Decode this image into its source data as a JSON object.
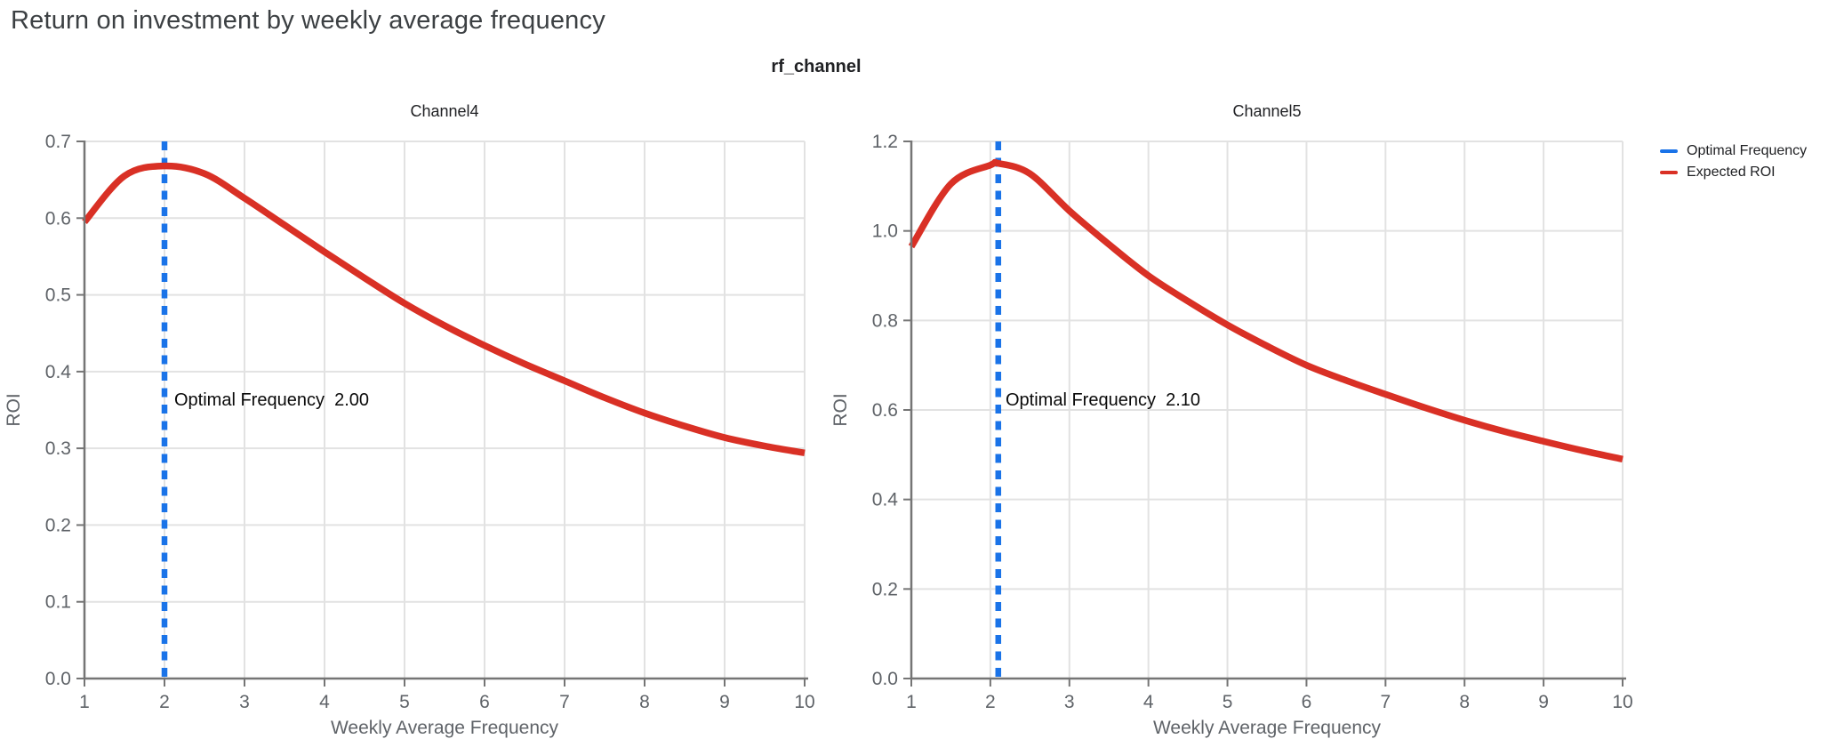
{
  "page": {
    "title": "Return on investment by weekly average frequency"
  },
  "figure": {
    "suptitle": "rf_channel",
    "legend": [
      {
        "label": "Optimal Frequency",
        "color": "#1a73e8"
      },
      {
        "label": "Expected ROI",
        "color": "#d93025"
      }
    ]
  },
  "colors": {
    "curve_red": "#d93025",
    "optimal_blue": "#1a73e8",
    "grid": "#e2e2e2",
    "spine": "#757575",
    "tick_text": "#5f6368",
    "title_text": "#202124"
  },
  "chart_data": [
    {
      "type": "line",
      "title": "Channel4",
      "xlabel": "Weekly Average Frequency",
      "ylabel": "ROI",
      "xlim": [
        1,
        10
      ],
      "ylim": [
        0,
        0.7
      ],
      "xticks": [
        1,
        2,
        3,
        4,
        5,
        6,
        7,
        8,
        9,
        10
      ],
      "ytick_labels": [
        "0.0",
        "0.1",
        "0.2",
        "0.3",
        "0.4",
        "0.5",
        "0.6",
        "0.7"
      ],
      "grid": true,
      "optimal_frequency": 2.0,
      "optimal_line_color": "#1a73e8",
      "annotation": {
        "text": "Optimal Frequency  2.00",
        "x": 2.0
      },
      "series": [
        {
          "name": "Expected ROI",
          "color": "#d93025",
          "x": [
            1,
            1.5,
            2,
            2.5,
            3,
            3.5,
            4,
            4.5,
            5,
            5.5,
            6,
            6.5,
            7,
            7.5,
            8,
            8.5,
            9,
            9.5,
            10
          ],
          "y": [
            0.595,
            0.655,
            0.668,
            0.658,
            0.626,
            0.591,
            0.556,
            0.522,
            0.489,
            0.46,
            0.434,
            0.41,
            0.388,
            0.366,
            0.346,
            0.329,
            0.314,
            0.303,
            0.294
          ]
        }
      ]
    },
    {
      "type": "line",
      "title": "Channel5",
      "xlabel": "Weekly Average Frequency",
      "ylabel": "ROI",
      "xlim": [
        1,
        10
      ],
      "ylim": [
        0,
        1.2
      ],
      "xticks": [
        1,
        2,
        3,
        4,
        5,
        6,
        7,
        8,
        9,
        10
      ],
      "ytick_labels": [
        "0.0",
        "0.2",
        "0.4",
        "0.6",
        "0.8",
        "1.0",
        "1.2"
      ],
      "grid": true,
      "optimal_frequency": 2.1,
      "optimal_line_color": "#1a73e8",
      "annotation": {
        "text": "Optimal Frequency  2.10",
        "x": 2.1
      },
      "series": [
        {
          "name": "Expected ROI",
          "color": "#d93025",
          "x": [
            1,
            1.5,
            2,
            2.1,
            2.5,
            3,
            3.5,
            4,
            4.5,
            5,
            5.5,
            6,
            6.5,
            7,
            7.5,
            8,
            8.5,
            9,
            9.5,
            10
          ],
          "y": [
            0.965,
            1.105,
            1.147,
            1.151,
            1.128,
            1.045,
            0.97,
            0.9,
            0.843,
            0.79,
            0.743,
            0.7,
            0.666,
            0.635,
            0.605,
            0.577,
            0.552,
            0.53,
            0.509,
            0.49
          ]
        }
      ]
    }
  ]
}
